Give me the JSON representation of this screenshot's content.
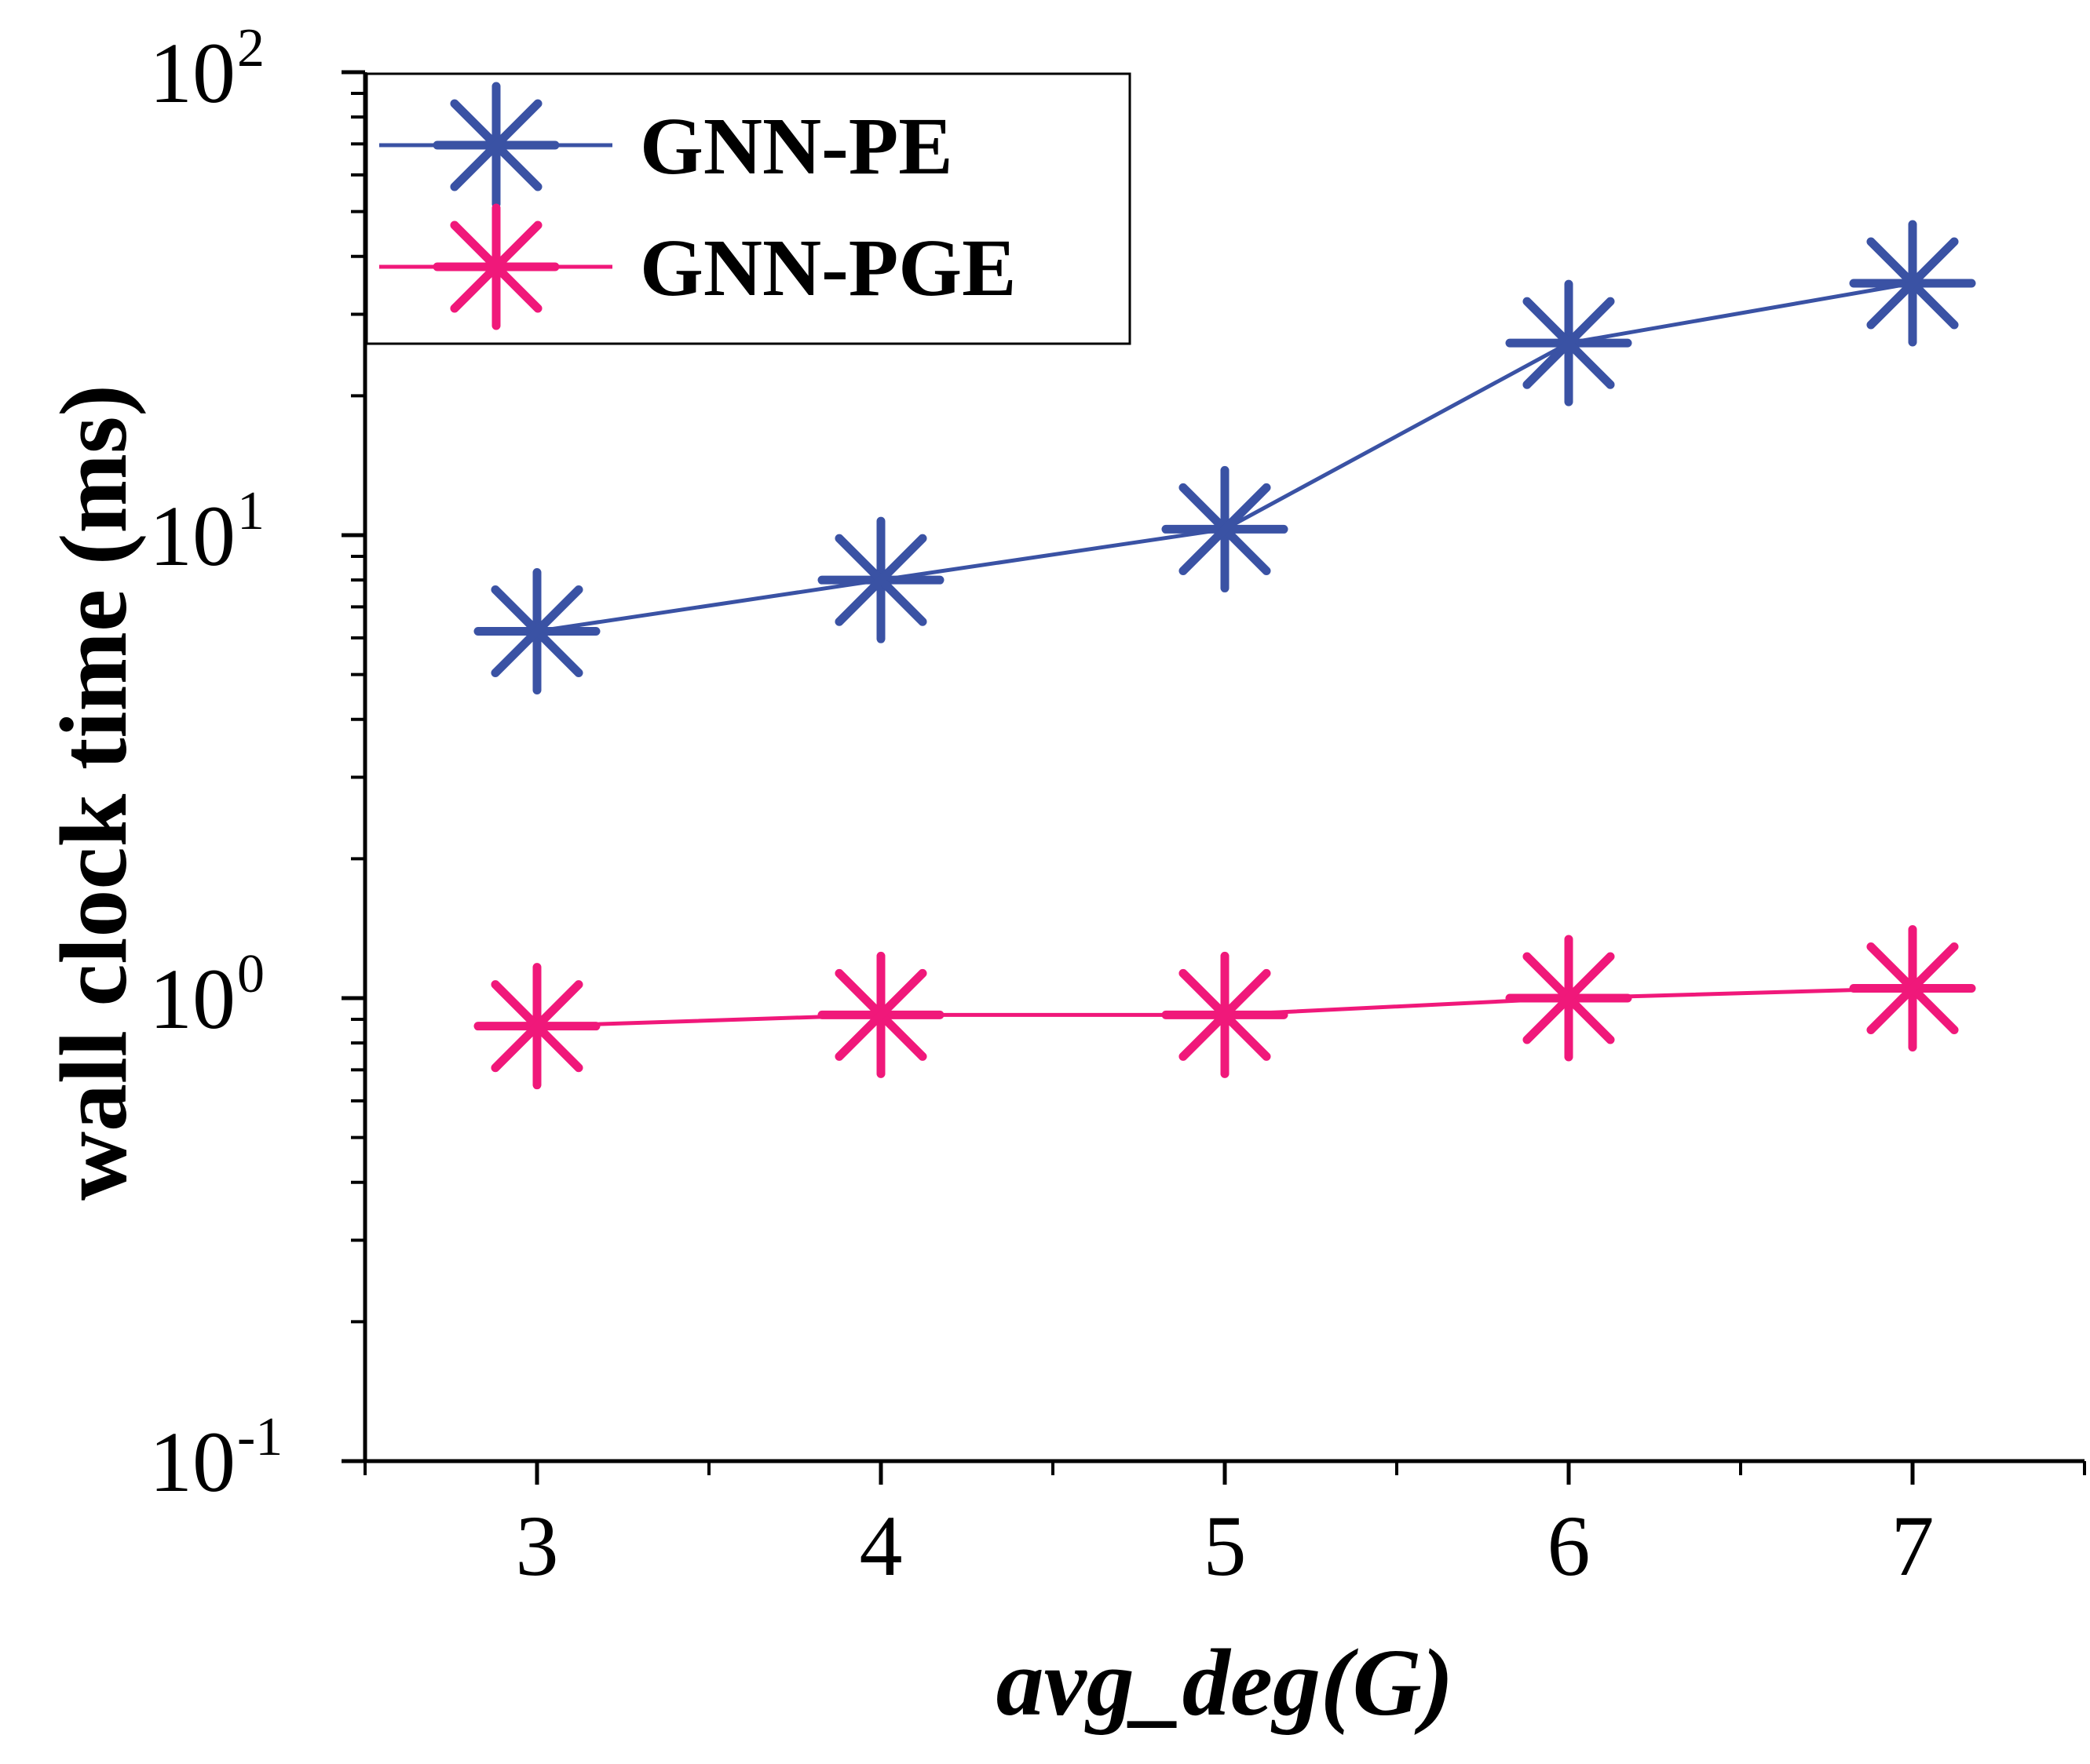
{
  "chart_data": {
    "type": "line",
    "xlabel": "avg_deg(G)",
    "ylabel": "wall clock time (ms)",
    "x": [
      3,
      4,
      5,
      6,
      7
    ],
    "xticks": [
      "3",
      "4",
      "5",
      "6",
      "7"
    ],
    "xlim": [
      2.5,
      7.5
    ],
    "yscale": "log",
    "ylim": [
      0.1,
      100
    ],
    "yticks": [
      {
        "value": 100,
        "base": "10",
        "exp": "2"
      },
      {
        "value": 10,
        "base": "10",
        "exp": "1"
      },
      {
        "value": 1,
        "base": "10",
        "exp": "0"
      },
      {
        "value": 0.1,
        "base": "10",
        "exp": "-1"
      }
    ],
    "legend_position": "top-left",
    "grid": false,
    "series": [
      {
        "name": "GNN-PE",
        "color": "#3a52a4",
        "marker": "asterisk",
        "values": [
          6.2,
          8.0,
          10.3,
          26.0,
          35.0
        ]
      },
      {
        "name": "GNN-PGE",
        "color": "#f0187a",
        "marker": "asterisk",
        "values": [
          0.87,
          0.92,
          0.92,
          1.0,
          1.05
        ]
      }
    ]
  }
}
